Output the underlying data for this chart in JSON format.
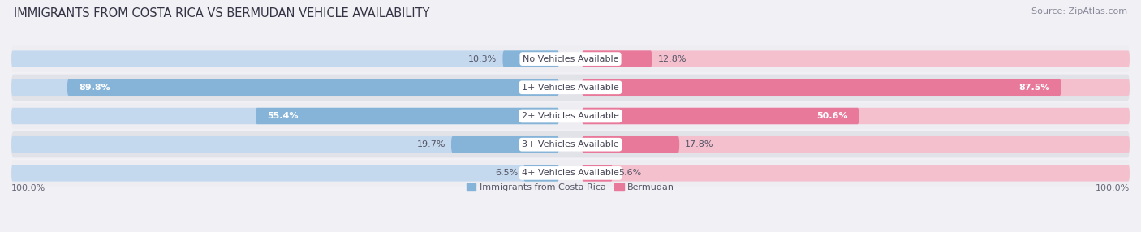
{
  "title": "IMMIGRANTS FROM COSTA RICA VS BERMUDAN VEHICLE AVAILABILITY",
  "source": "Source: ZipAtlas.com",
  "categories": [
    "No Vehicles Available",
    "1+ Vehicles Available",
    "2+ Vehicles Available",
    "3+ Vehicles Available",
    "4+ Vehicles Available"
  ],
  "costa_rica_values": [
    10.3,
    89.8,
    55.4,
    19.7,
    6.5
  ],
  "bermudan_values": [
    12.8,
    87.5,
    50.6,
    17.8,
    5.6
  ],
  "costa_rica_color": "#85b4d8",
  "bermudan_color": "#e8799a",
  "costa_rica_light": "#c5d9ee",
  "bermudan_light": "#f5c0ce",
  "costa_rica_legend": "#85b4d8",
  "bermudan_legend": "#e8799a",
  "row_bg_odd": "#ededf2",
  "row_bg_even": "#e2e2e9",
  "fig_bg": "#f0f0f5",
  "max_value": 100.0,
  "legend_labels": [
    "Immigrants from Costa Rica",
    "Bermudan"
  ],
  "title_fontsize": 10.5,
  "source_fontsize": 8,
  "label_fontsize": 8,
  "category_fontsize": 8,
  "bar_height": 0.58,
  "figsize": [
    14.06,
    2.86
  ],
  "dpi": 100
}
